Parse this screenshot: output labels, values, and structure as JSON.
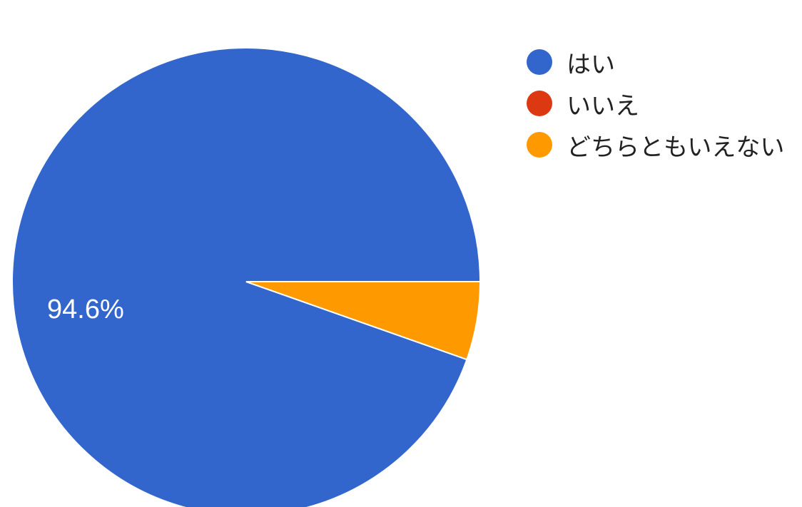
{
  "chart_data": {
    "type": "pie",
    "categories": [
      "はい",
      "いいえ",
      "どちらともいえない"
    ],
    "values": [
      94.6,
      0,
      5.4
    ],
    "colors": [
      "#3366cc",
      "#dc3912",
      "#ff9900"
    ],
    "data_labels": [
      "94.6%",
      "",
      ""
    ],
    "legend_position": "right"
  }
}
